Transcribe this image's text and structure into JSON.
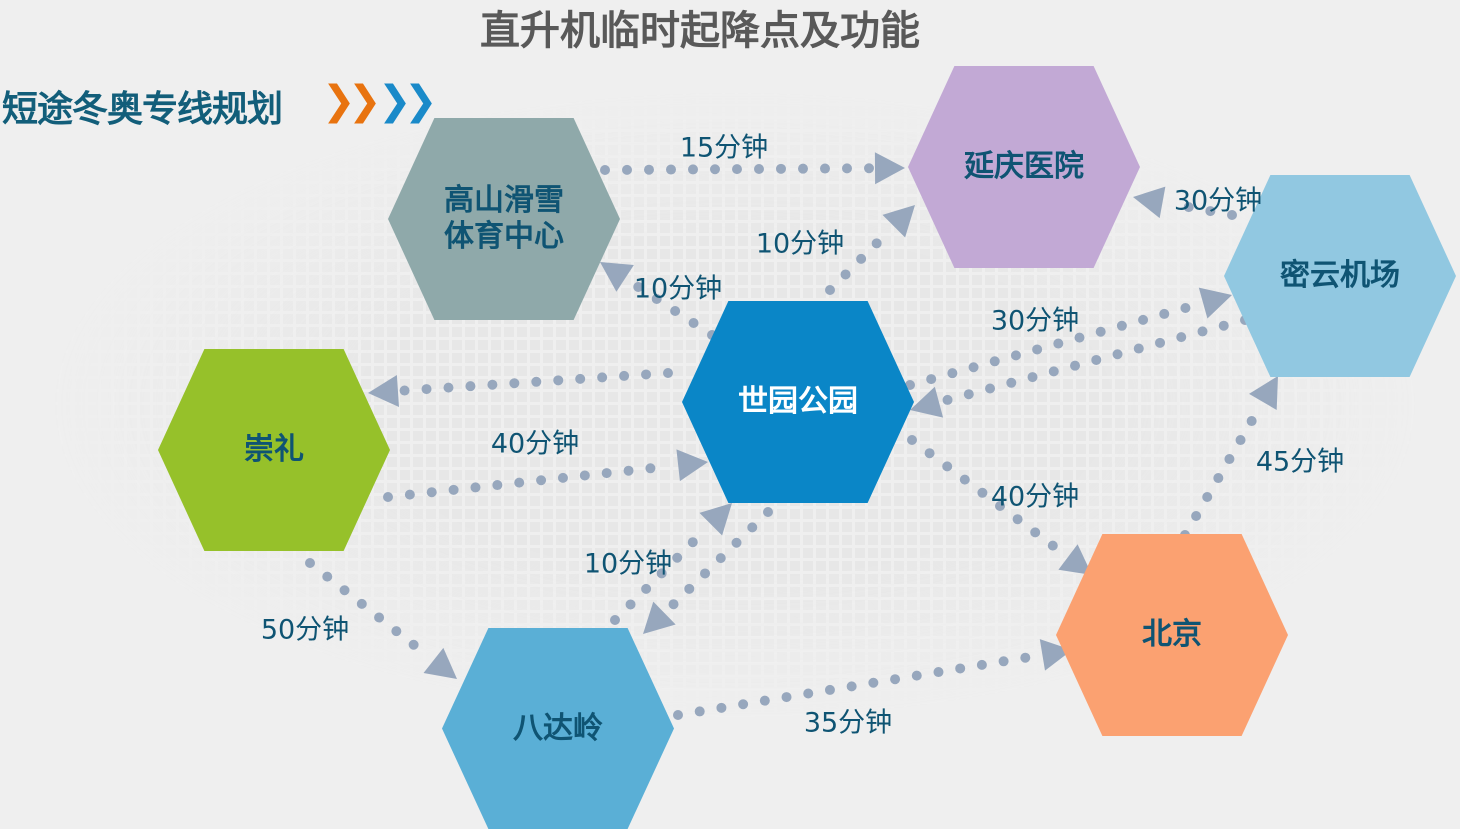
{
  "title": "直升机临时起降点及功能",
  "subtitle": "短途冬奥专线规划",
  "chevrons": [
    {
      "color": "#e8730f"
    },
    {
      "color": "#e8730f"
    },
    {
      "color": "#1a8ac9"
    },
    {
      "color": "#1a8ac9"
    }
  ],
  "chevron_glyph": "❯",
  "nodes": {
    "gaoshan": {
      "label": "高山滑雪\n体育中心",
      "color": "#8fa9aa"
    },
    "yanqing": {
      "label": "延庆医院",
      "color": "#c2a9d5"
    },
    "miyun": {
      "label": "密云机场",
      "color": "#91c8e1"
    },
    "chongli": {
      "label": "崇礼",
      "color": "#96c12a"
    },
    "shiyuan": {
      "label": "世园公园",
      "color": "#0a86c7"
    },
    "beijing": {
      "label": "北京",
      "color": "#fba171"
    },
    "badaling": {
      "label": "八达岭",
      "color": "#5aafd6"
    }
  },
  "edges": [
    {
      "from": "高山滑雪体育中心",
      "to": "延庆医院",
      "label": "15分钟"
    },
    {
      "from": "世园公园",
      "to": "延庆医院",
      "label": "10分钟"
    },
    {
      "from": "世园公园",
      "to": "高山滑雪体育中心",
      "label": "10分钟"
    },
    {
      "from": "密云机场",
      "to": "延庆医院",
      "label": "30分钟"
    },
    {
      "from": "世园公园",
      "to": "密云机场",
      "label": "30分钟"
    },
    {
      "from": "密云机场",
      "to": "世园公园",
      "label": ""
    },
    {
      "from": "世园公园",
      "to": "崇礼",
      "label": ""
    },
    {
      "from": "崇礼",
      "to": "世园公园",
      "label": "40分钟"
    },
    {
      "from": "世园公园",
      "to": "北京",
      "label": "40分钟"
    },
    {
      "from": "北京",
      "to": "密云机场",
      "label": "45分钟"
    },
    {
      "from": "八达岭",
      "to": "世园公园",
      "label": "10分钟"
    },
    {
      "from": "世园公园",
      "to": "八达岭",
      "label": ""
    },
    {
      "from": "崇礼",
      "to": "八达岭",
      "label": "50分钟"
    },
    {
      "from": "八达岭",
      "to": "北京",
      "label": "35分钟"
    }
  ],
  "arrow_color": "#97a7bd"
}
